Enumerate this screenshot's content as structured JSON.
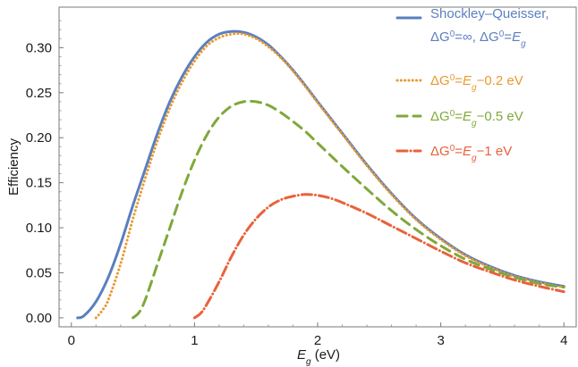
{
  "chart_data": {
    "type": "line",
    "xlabel": {
      "var": "E",
      "sub": "g",
      "unit": " (eV)"
    },
    "ylabel": "Efficiency",
    "xlim": [
      -0.1,
      4.1
    ],
    "ylim": [
      -0.01,
      0.345
    ],
    "x_ticks": [
      0,
      1,
      2,
      3,
      4
    ],
    "x_tick_labels": [
      "0",
      "1",
      "2",
      "3",
      "4"
    ],
    "y_ticks": [
      0.0,
      0.05,
      0.1,
      0.15,
      0.2,
      0.25,
      0.3
    ],
    "y_tick_labels": [
      "0.00",
      "0.05",
      "0.10",
      "0.15",
      "0.20",
      "0.25",
      "0.30"
    ],
    "grid": false,
    "legend_position": "top-right",
    "series": [
      {
        "legend_lines": [
          [
            {
              "t": "Shockley–Queisser,"
            }
          ],
          [
            {
              "t": "ΔG"
            },
            {
              "t": "0",
              "sup": true
            },
            {
              "t": "=∞, ΔG"
            },
            {
              "t": "0",
              "sup": true
            },
            {
              "t": "="
            },
            {
              "t": "E",
              "italic": true
            },
            {
              "t": "g",
              "sub": true,
              "italic": true
            }
          ]
        ],
        "color": "#5b7fbf",
        "dash": "solid",
        "x": [
          0.05,
          0.1,
          0.2,
          0.3,
          0.4,
          0.5,
          0.6,
          0.7,
          0.8,
          0.9,
          1.0,
          1.1,
          1.2,
          1.3,
          1.4,
          1.5,
          1.6,
          1.7,
          1.8,
          1.9,
          2.0,
          2.2,
          2.4,
          2.6,
          2.8,
          3.0,
          3.2,
          3.4,
          3.6,
          3.8,
          4.0
        ],
        "y": [
          0.0,
          0.002,
          0.018,
          0.045,
          0.082,
          0.125,
          0.165,
          0.205,
          0.24,
          0.268,
          0.29,
          0.306,
          0.315,
          0.318,
          0.317,
          0.312,
          0.303,
          0.29,
          0.275,
          0.258,
          0.24,
          0.205,
          0.17,
          0.138,
          0.11,
          0.088,
          0.07,
          0.057,
          0.047,
          0.04,
          0.035
        ]
      },
      {
        "legend_lines": [
          [
            {
              "t": "ΔG"
            },
            {
              "t": "0",
              "sup": true
            },
            {
              "t": "="
            },
            {
              "t": "E",
              "italic": true
            },
            {
              "t": "g",
              "sub": true,
              "italic": true
            },
            {
              "t": "−0.2 eV"
            }
          ]
        ],
        "color": "#e89a2e",
        "dash": "dotted",
        "x": [
          0.2,
          0.25,
          0.3,
          0.4,
          0.5,
          0.6,
          0.7,
          0.8,
          0.9,
          1.0,
          1.1,
          1.2,
          1.3,
          1.4,
          1.5,
          1.6,
          1.7,
          1.8,
          1.9,
          2.0,
          2.2,
          2.4,
          2.6,
          2.8,
          3.0,
          3.2,
          3.4,
          3.6,
          3.8,
          4.0
        ],
        "y": [
          0.0,
          0.008,
          0.02,
          0.06,
          0.11,
          0.155,
          0.197,
          0.233,
          0.262,
          0.285,
          0.302,
          0.311,
          0.315,
          0.315,
          0.31,
          0.301,
          0.289,
          0.274,
          0.257,
          0.239,
          0.204,
          0.169,
          0.137,
          0.109,
          0.087,
          0.069,
          0.056,
          0.046,
          0.039,
          0.034
        ]
      },
      {
        "legend_lines": [
          [
            {
              "t": "ΔG"
            },
            {
              "t": "0",
              "sup": true
            },
            {
              "t": "="
            },
            {
              "t": "E",
              "italic": true
            },
            {
              "t": "g",
              "sub": true,
              "italic": true
            },
            {
              "t": "−0.5 eV"
            }
          ]
        ],
        "color": "#7fa83a",
        "dash": "dashed",
        "x": [
          0.5,
          0.55,
          0.6,
          0.7,
          0.8,
          0.9,
          1.0,
          1.1,
          1.2,
          1.3,
          1.4,
          1.5,
          1.6,
          1.7,
          1.8,
          1.9,
          2.0,
          2.2,
          2.4,
          2.6,
          2.8,
          3.0,
          3.2,
          3.4,
          3.6,
          3.8,
          4.0
        ],
        "y": [
          0.0,
          0.006,
          0.02,
          0.06,
          0.1,
          0.14,
          0.175,
          0.203,
          0.223,
          0.235,
          0.24,
          0.24,
          0.236,
          0.228,
          0.218,
          0.207,
          0.194,
          0.168,
          0.143,
          0.119,
          0.098,
          0.08,
          0.065,
          0.054,
          0.045,
          0.038,
          0.034
        ]
      },
      {
        "legend_lines": [
          [
            {
              "t": "ΔG"
            },
            {
              "t": "0",
              "sup": true
            },
            {
              "t": "="
            },
            {
              "t": "E",
              "italic": true
            },
            {
              "t": "g",
              "sub": true,
              "italic": true
            },
            {
              "t": "−1 eV"
            }
          ]
        ],
        "color": "#e8623a",
        "dash": "dashdot",
        "x": [
          1.0,
          1.05,
          1.1,
          1.2,
          1.3,
          1.4,
          1.5,
          1.6,
          1.7,
          1.8,
          1.9,
          2.0,
          2.1,
          2.2,
          2.4,
          2.6,
          2.8,
          3.0,
          3.2,
          3.4,
          3.6,
          3.8,
          4.0
        ],
        "y": [
          0.0,
          0.005,
          0.015,
          0.04,
          0.068,
          0.092,
          0.11,
          0.123,
          0.131,
          0.135,
          0.137,
          0.136,
          0.133,
          0.128,
          0.116,
          0.102,
          0.088,
          0.074,
          0.061,
          0.051,
          0.042,
          0.035,
          0.029
        ]
      }
    ]
  }
}
